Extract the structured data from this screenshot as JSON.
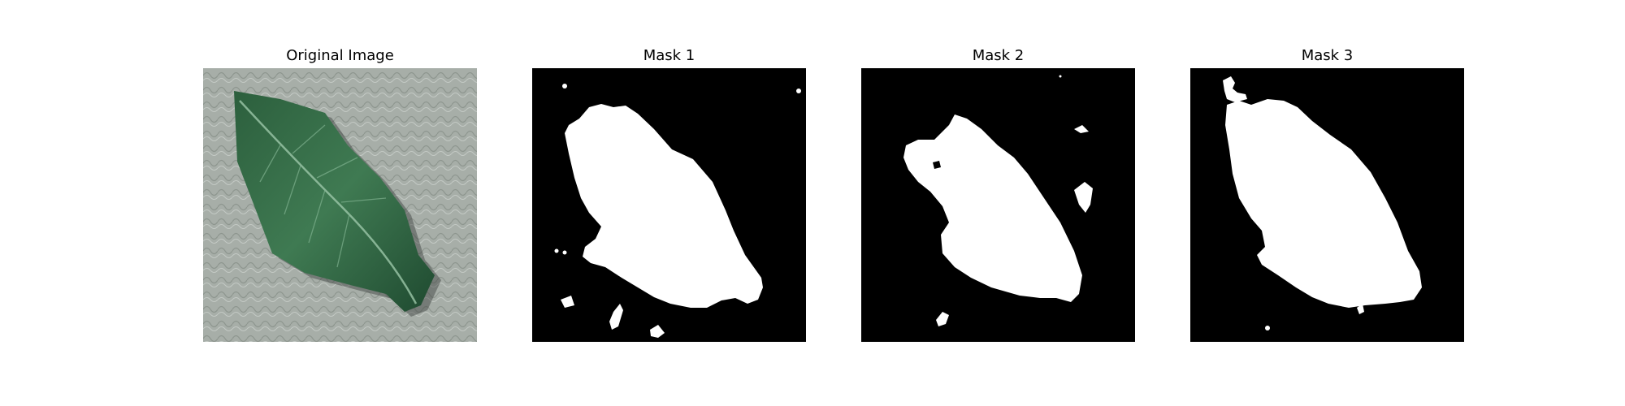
{
  "figure": {
    "panels": [
      {
        "title": "Original Image"
      },
      {
        "title": "Mask 1"
      },
      {
        "title": "Mask 2"
      },
      {
        "title": "Mask 3"
      }
    ]
  },
  "colors": {
    "background": "#ffffff",
    "mask_background": "#000000",
    "mask_foreground": "#ffffff",
    "leaf_dark": "#1f4a30",
    "leaf_mid": "#3f7a52",
    "leaf_light": "#7fb08f",
    "surface": "#a7aea8"
  }
}
